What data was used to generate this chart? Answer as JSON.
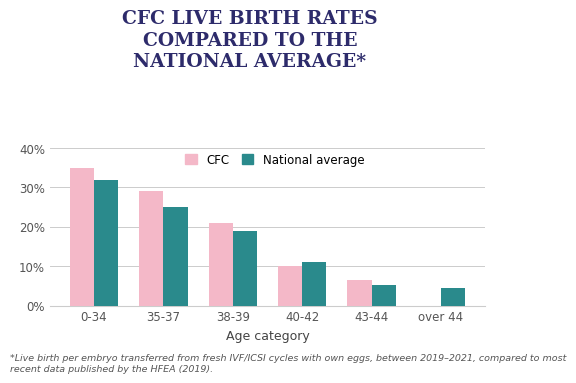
{
  "title": "CFC LIVE BIRTH RATES\nCOMPARED TO THE\nNATIONAL AVERAGE*",
  "categories": [
    "0-34",
    "35-37",
    "38-39",
    "40-42",
    "43-44",
    "over 44"
  ],
  "cfc_values": [
    0.35,
    0.29,
    0.21,
    0.1,
    0.065,
    0.0
  ],
  "national_values": [
    0.32,
    0.25,
    0.19,
    0.11,
    0.052,
    0.044
  ],
  "cfc_color": "#f4b8c8",
  "national_color": "#2a8a8c",
  "title_color": "#2d2b6b",
  "xlabel": "Age category",
  "ylabel": "",
  "ylim": [
    0,
    0.4
  ],
  "yticks": [
    0.0,
    0.1,
    0.2,
    0.3,
    0.4
  ],
  "ytick_labels": [
    "0%",
    "10%",
    "20%",
    "30%",
    "40%"
  ],
  "legend_labels": [
    "CFC",
    "National average"
  ],
  "footnote": "*Live birth per embryo transferred from fresh IVF/ICSI cycles with own eggs, between 2019–2021, compared to most\nrecent data published by the HFEA (2019).",
  "title_fontsize": 13.5,
  "axis_fontsize": 8.5,
  "legend_fontsize": 8.5,
  "footnote_fontsize": 6.8,
  "bar_width": 0.35,
  "background_color": "#ffffff"
}
